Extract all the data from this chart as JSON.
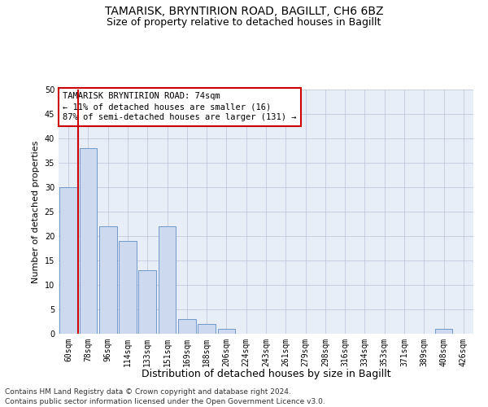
{
  "title": "TAMARISK, BRYNTIRION ROAD, BAGILLT, CH6 6BZ",
  "subtitle": "Size of property relative to detached houses in Bagillt",
  "xlabel": "Distribution of detached houses by size in Bagillt",
  "ylabel": "Number of detached properties",
  "categories": [
    "60sqm",
    "78sqm",
    "96sqm",
    "114sqm",
    "133sqm",
    "151sqm",
    "169sqm",
    "188sqm",
    "206sqm",
    "224sqm",
    "243sqm",
    "261sqm",
    "279sqm",
    "298sqm",
    "316sqm",
    "334sqm",
    "353sqm",
    "371sqm",
    "389sqm",
    "408sqm",
    "426sqm"
  ],
  "values": [
    30,
    38,
    22,
    19,
    13,
    22,
    3,
    2,
    1,
    0,
    0,
    0,
    0,
    0,
    0,
    0,
    0,
    0,
    0,
    1,
    0
  ],
  "bar_color": "#ccd9ee",
  "bar_edge_color": "#7098c8",
  "vline_color": "#cc0000",
  "vline_x_index": 0,
  "ylim": [
    0,
    50
  ],
  "yticks": [
    0,
    5,
    10,
    15,
    20,
    25,
    30,
    35,
    40,
    45,
    50
  ],
  "annotation_title": "TAMARISK BRYNTIRION ROAD: 74sqm",
  "annotation_line1": "← 11% of detached houses are smaller (16)",
  "annotation_line2": "87% of semi-detached houses are larger (131) →",
  "annotation_box_color": "#ffffff",
  "annotation_box_edge": "#cc0000",
  "footer1": "Contains HM Land Registry data © Crown copyright and database right 2024.",
  "footer2": "Contains public sector information licensed under the Open Government Licence v3.0.",
  "background_color": "#e8eef8",
  "grid_color": "#b0b8d0",
  "title_fontsize": 10,
  "subtitle_fontsize": 9,
  "xlabel_fontsize": 9,
  "ylabel_fontsize": 8,
  "tick_fontsize": 7,
  "annotation_fontsize": 7.5,
  "footer_fontsize": 6.5
}
